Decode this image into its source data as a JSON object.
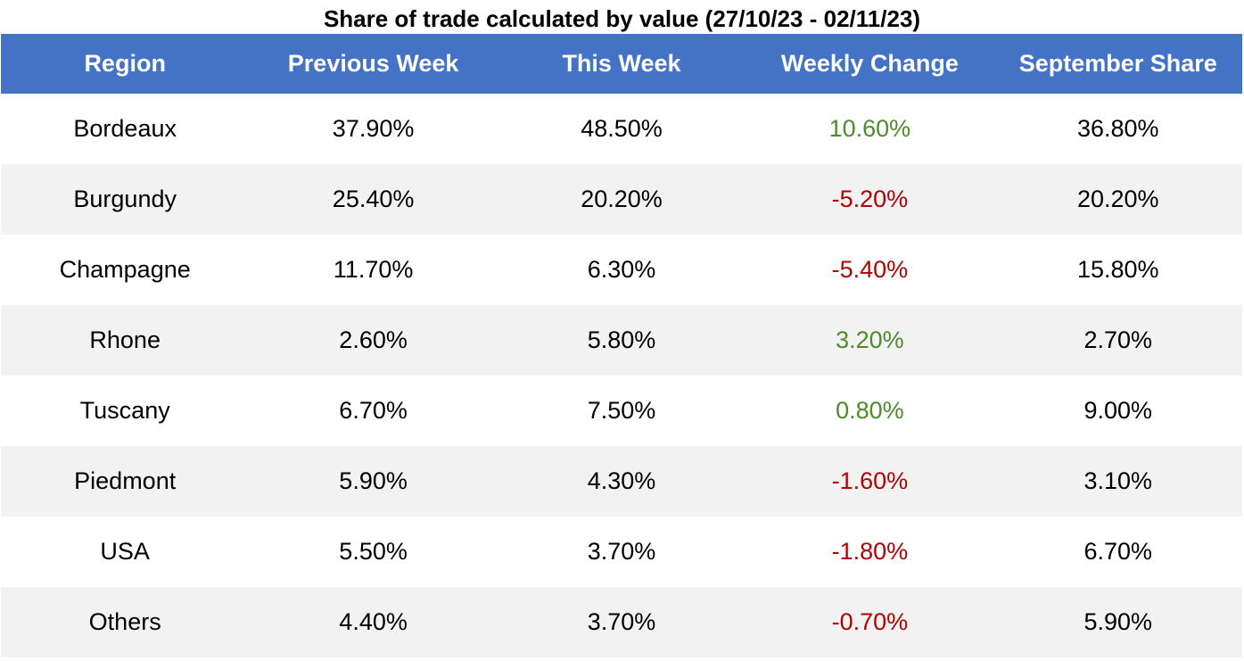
{
  "chart_data": {
    "type": "table",
    "title": "Share of trade calculated by value (27/10/23 - 02/11/23)",
    "columns": [
      "Region",
      "Previous Week",
      "This Week",
      "Weekly Change",
      "September Share"
    ],
    "rows": [
      {
        "region": "Bordeaux",
        "previous_week": "37.90%",
        "this_week": "48.50%",
        "weekly_change": "10.60%",
        "september_share": "36.80%",
        "change_direction": "positive"
      },
      {
        "region": "Burgundy",
        "previous_week": "25.40%",
        "this_week": "20.20%",
        "weekly_change": "-5.20%",
        "september_share": "20.20%",
        "change_direction": "negative"
      },
      {
        "region": "Champagne",
        "previous_week": "11.70%",
        "this_week": "6.30%",
        "weekly_change": "-5.40%",
        "september_share": "15.80%",
        "change_direction": "negative"
      },
      {
        "region": "Rhone",
        "previous_week": "2.60%",
        "this_week": "5.80%",
        "weekly_change": "3.20%",
        "september_share": "2.70%",
        "change_direction": "positive"
      },
      {
        "region": "Tuscany",
        "previous_week": "6.70%",
        "this_week": "7.50%",
        "weekly_change": "0.80%",
        "september_share": "9.00%",
        "change_direction": "positive"
      },
      {
        "region": "Piedmont",
        "previous_week": "5.90%",
        "this_week": "4.30%",
        "weekly_change": "-1.60%",
        "september_share": "3.10%",
        "change_direction": "negative"
      },
      {
        "region": "USA",
        "previous_week": "5.50%",
        "this_week": "3.70%",
        "weekly_change": "-1.80%",
        "september_share": "6.70%",
        "change_direction": "negative"
      },
      {
        "region": "Others",
        "previous_week": "4.40%",
        "this_week": "3.70%",
        "weekly_change": "-0.70%",
        "september_share": "5.90%",
        "change_direction": "negative"
      }
    ]
  },
  "colors": {
    "header_bg": "#4472c4",
    "header_text": "#ffffff",
    "row_even_bg": "#ffffff",
    "row_odd_bg": "#f2f2f2",
    "positive_text": "#4e8a2e",
    "negative_text": "#b00000"
  }
}
